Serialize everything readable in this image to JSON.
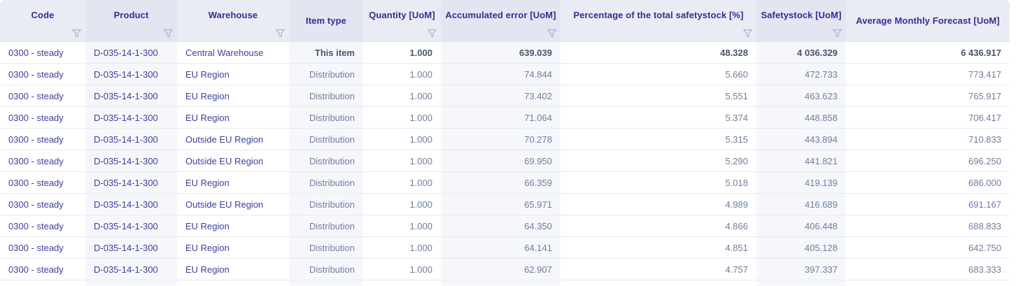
{
  "grid": {
    "columns": [
      {
        "key": "code",
        "label": "Code",
        "filter": true,
        "align": "left",
        "tinted": false,
        "id_style": true
      },
      {
        "key": "product",
        "label": "Product",
        "filter": true,
        "align": "left",
        "tinted": true,
        "id_style": true
      },
      {
        "key": "warehouse",
        "label": "Warehouse",
        "filter": true,
        "align": "left",
        "tinted": false,
        "id_style": true
      },
      {
        "key": "item_type",
        "label": "Item type",
        "filter": false,
        "align": "right",
        "tinted": true,
        "id_style": false
      },
      {
        "key": "quantity",
        "label": "Quantity [UoM]",
        "filter": true,
        "align": "right",
        "tinted": false,
        "id_style": false
      },
      {
        "key": "accumulated_error",
        "label": "Accumulated error [UoM]",
        "filter": true,
        "align": "right",
        "tinted": true,
        "id_style": false
      },
      {
        "key": "percentage",
        "label": "Percentage of the total safetystock [%]",
        "filter": true,
        "align": "right",
        "tinted": false,
        "id_style": false
      },
      {
        "key": "safetystock",
        "label": "Safetystock [UoM]",
        "filter": true,
        "align": "right",
        "tinted": true,
        "id_style": false
      },
      {
        "key": "avg_monthly_forecast",
        "label": "Average Monthly Forecast [UoM]",
        "filter": false,
        "align": "right",
        "tinted": false,
        "id_style": false
      }
    ],
    "rows": [
      {
        "code": "0300 - steady",
        "product": "D-035-14-1-300",
        "warehouse": "Central Warehouse",
        "item_type": "This item",
        "quantity": "1.000",
        "accumulated_error": "639.039",
        "percentage": "48.328",
        "safetystock": "4 036.329",
        "avg_monthly_forecast": "6 436.917",
        "emphasis": true
      },
      {
        "code": "0300 - steady",
        "product": "D-035-14-1-300",
        "warehouse": "EU Region",
        "item_type": "Distribution",
        "quantity": "1.000",
        "accumulated_error": "74.844",
        "percentage": "5.660",
        "safetystock": "472.733",
        "avg_monthly_forecast": "773.417",
        "emphasis": false
      },
      {
        "code": "0300 - steady",
        "product": "D-035-14-1-300",
        "warehouse": "EU Region",
        "item_type": "Distribution",
        "quantity": "1.000",
        "accumulated_error": "73.402",
        "percentage": "5.551",
        "safetystock": "463.623",
        "avg_monthly_forecast": "765.917",
        "emphasis": false
      },
      {
        "code": "0300 - steady",
        "product": "D-035-14-1-300",
        "warehouse": "EU Region",
        "item_type": "Distribution",
        "quantity": "1.000",
        "accumulated_error": "71.064",
        "percentage": "5.374",
        "safetystock": "448.858",
        "avg_monthly_forecast": "706.417",
        "emphasis": false
      },
      {
        "code": "0300 - steady",
        "product": "D-035-14-1-300",
        "warehouse": "Outside EU Region",
        "item_type": "Distribution",
        "quantity": "1.000",
        "accumulated_error": "70.278",
        "percentage": "5.315",
        "safetystock": "443.894",
        "avg_monthly_forecast": "710.833",
        "emphasis": false
      },
      {
        "code": "0300 - steady",
        "product": "D-035-14-1-300",
        "warehouse": "Outside EU Region",
        "item_type": "Distribution",
        "quantity": "1.000",
        "accumulated_error": "69.950",
        "percentage": "5.290",
        "safetystock": "441.821",
        "avg_monthly_forecast": "696.250",
        "emphasis": false
      },
      {
        "code": "0300 - steady",
        "product": "D-035-14-1-300",
        "warehouse": "EU Region",
        "item_type": "Distribution",
        "quantity": "1.000",
        "accumulated_error": "66.359",
        "percentage": "5.018",
        "safetystock": "419.139",
        "avg_monthly_forecast": "686.000",
        "emphasis": false
      },
      {
        "code": "0300 - steady",
        "product": "D-035-14-1-300",
        "warehouse": "Outside EU Region",
        "item_type": "Distribution",
        "quantity": "1.000",
        "accumulated_error": "65.971",
        "percentage": "4.989",
        "safetystock": "416.689",
        "avg_monthly_forecast": "691.167",
        "emphasis": false
      },
      {
        "code": "0300 - steady",
        "product": "D-035-14-1-300",
        "warehouse": "EU Region",
        "item_type": "Distribution",
        "quantity": "1.000",
        "accumulated_error": "64.350",
        "percentage": "4.866",
        "safetystock": "406.448",
        "avg_monthly_forecast": "688.833",
        "emphasis": false
      },
      {
        "code": "0300 - steady",
        "product": "D-035-14-1-300",
        "warehouse": "EU Region",
        "item_type": "Distribution",
        "quantity": "1.000",
        "accumulated_error": "64.141",
        "percentage": "4.851",
        "safetystock": "405.128",
        "avg_monthly_forecast": "642.750",
        "emphasis": false
      },
      {
        "code": "0300 - steady",
        "product": "D-035-14-1-300",
        "warehouse": "EU Region",
        "item_type": "Distribution",
        "quantity": "1.000",
        "accumulated_error": "62.907",
        "percentage": "4.757",
        "safetystock": "397.337",
        "avg_monthly_forecast": "683.333",
        "emphasis": false
      }
    ]
  },
  "icons": {
    "filter": "funnel-outline"
  },
  "colors": {
    "header_bg": "#eaecf5",
    "header_bg_tinted": "#e3e6f1",
    "column_tint": "#f6f7fb",
    "row_border": "#e7e9f1",
    "header_text": "#2d3190",
    "id_text": "#3d4198",
    "muted_text": "#6f7d9c",
    "emphasis_text": "#47566f",
    "filter_icon": "#9aa6c6"
  }
}
